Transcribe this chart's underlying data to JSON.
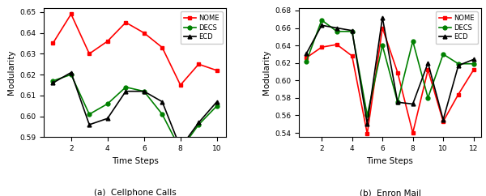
{
  "plot_a": {
    "title": "(a)  Cellphone Calls",
    "xlabel": "Time Steps",
    "ylabel": "Modularity",
    "x": [
      1,
      2,
      3,
      4,
      5,
      6,
      7,
      8,
      9,
      10
    ],
    "nome": [
      0.635,
      0.649,
      0.63,
      0.636,
      0.645,
      0.64,
      0.633,
      0.615,
      0.625,
      0.622
    ],
    "decs": [
      0.617,
      0.62,
      0.601,
      0.606,
      0.614,
      0.612,
      0.601,
      0.584,
      0.596,
      0.605
    ],
    "ecd": [
      0.616,
      0.621,
      0.596,
      0.599,
      0.612,
      0.612,
      0.607,
      0.585,
      0.597,
      0.607
    ],
    "ylim": [
      0.59,
      0.652
    ],
    "yticks": [
      0.59,
      0.6,
      0.61,
      0.62,
      0.63,
      0.64,
      0.65
    ],
    "xticks": [
      2,
      4,
      6,
      8,
      10
    ]
  },
  "plot_b": {
    "title": "(b)  Enron Mail",
    "xlabel": "Time Steps",
    "ylabel": "Modularity",
    "x": [
      1,
      2,
      3,
      4,
      5,
      6,
      7,
      8,
      9,
      10,
      11,
      12
    ],
    "nome": [
      0.626,
      0.638,
      0.641,
      0.628,
      0.539,
      0.66,
      0.609,
      0.54,
      0.612,
      0.553,
      0.584,
      0.612
    ],
    "decs": [
      0.622,
      0.669,
      0.656,
      0.656,
      0.56,
      0.64,
      0.575,
      0.645,
      0.58,
      0.63,
      0.619,
      0.619
    ],
    "ecd": [
      0.631,
      0.663,
      0.66,
      0.657,
      0.55,
      0.672,
      0.575,
      0.573,
      0.62,
      0.555,
      0.617,
      0.624
    ],
    "ylim": [
      0.535,
      0.683
    ],
    "yticks": [
      0.54,
      0.56,
      0.58,
      0.6,
      0.62,
      0.64,
      0.66,
      0.68
    ],
    "xticks": [
      2,
      4,
      6,
      8,
      10,
      12
    ]
  },
  "nome_color": "#FF0000",
  "decs_color": "#008000",
  "ecd_color": "#000000",
  "nome_marker": "s",
  "decs_marker": "o",
  "ecd_marker": "^",
  "linewidth": 1.2,
  "markersize": 3.5
}
